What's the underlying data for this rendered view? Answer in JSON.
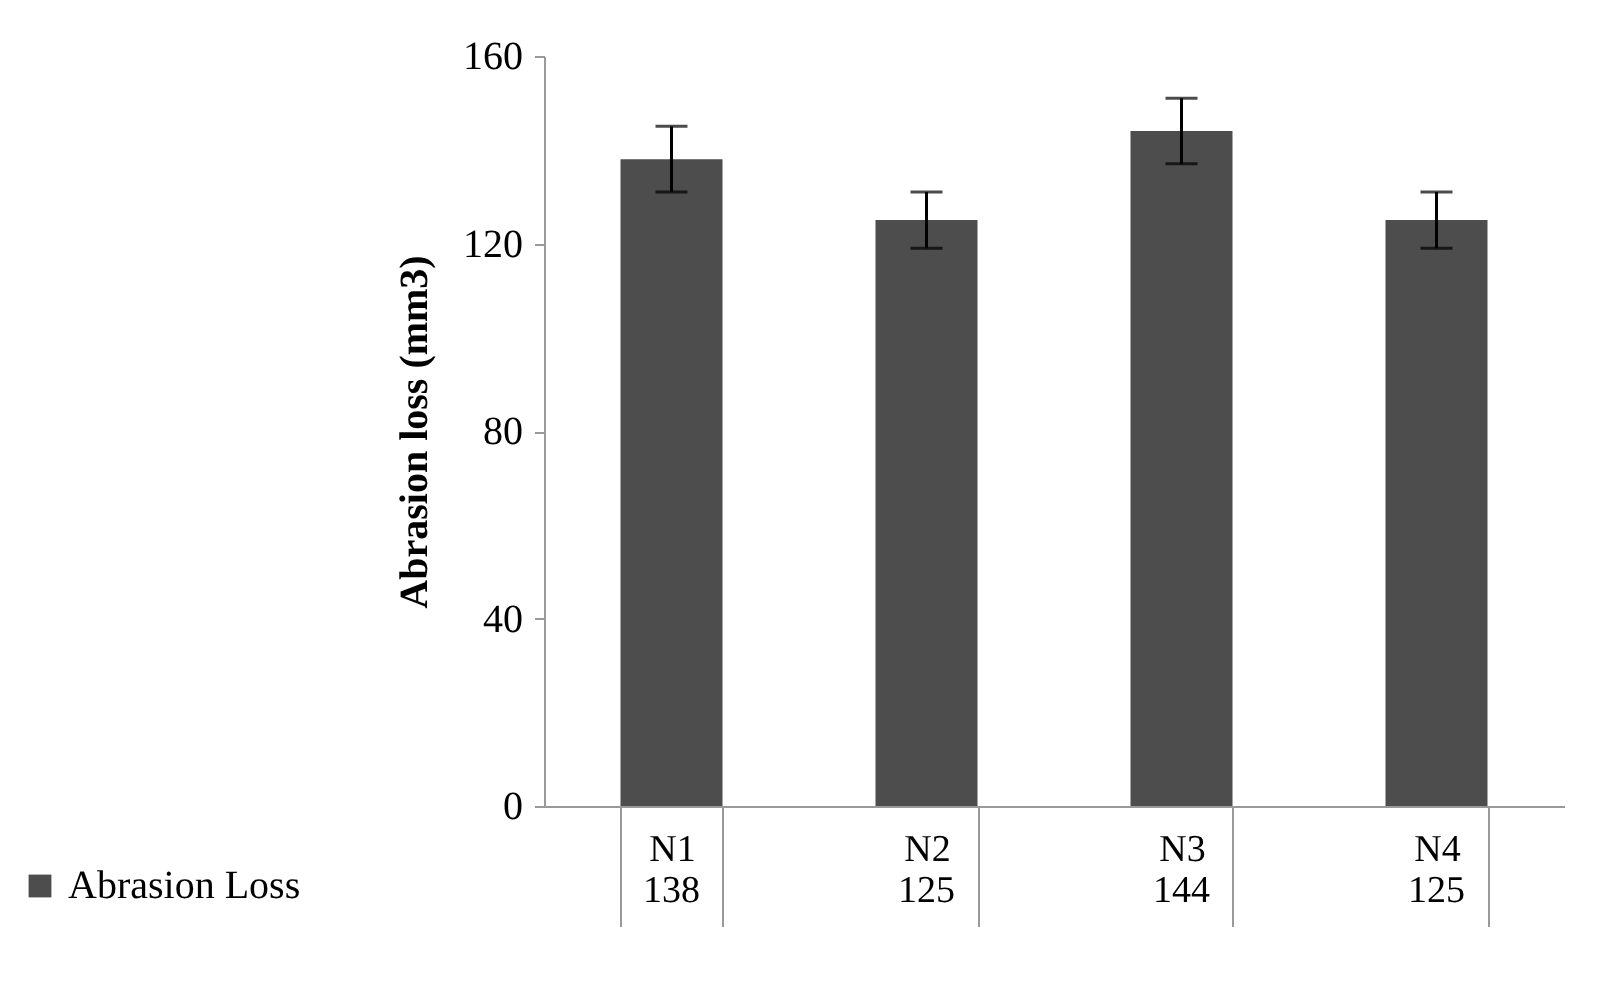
{
  "chart_data": {
    "type": "bar",
    "ylabel": "Abrasion loss (mm3)",
    "categories": [
      "N1",
      "N2",
      "N3",
      "N4"
    ],
    "series": [
      {
        "name": "Abrasion Loss",
        "color": "#4d4d4d",
        "values": [
          138,
          125,
          144,
          125
        ],
        "errors": [
          7,
          6,
          7,
          6
        ]
      }
    ],
    "ylim": [
      0,
      160
    ],
    "yticks": [
      0,
      40,
      80,
      120,
      160
    ],
    "grid": false,
    "data_labels": true,
    "legend": "bottom left"
  }
}
